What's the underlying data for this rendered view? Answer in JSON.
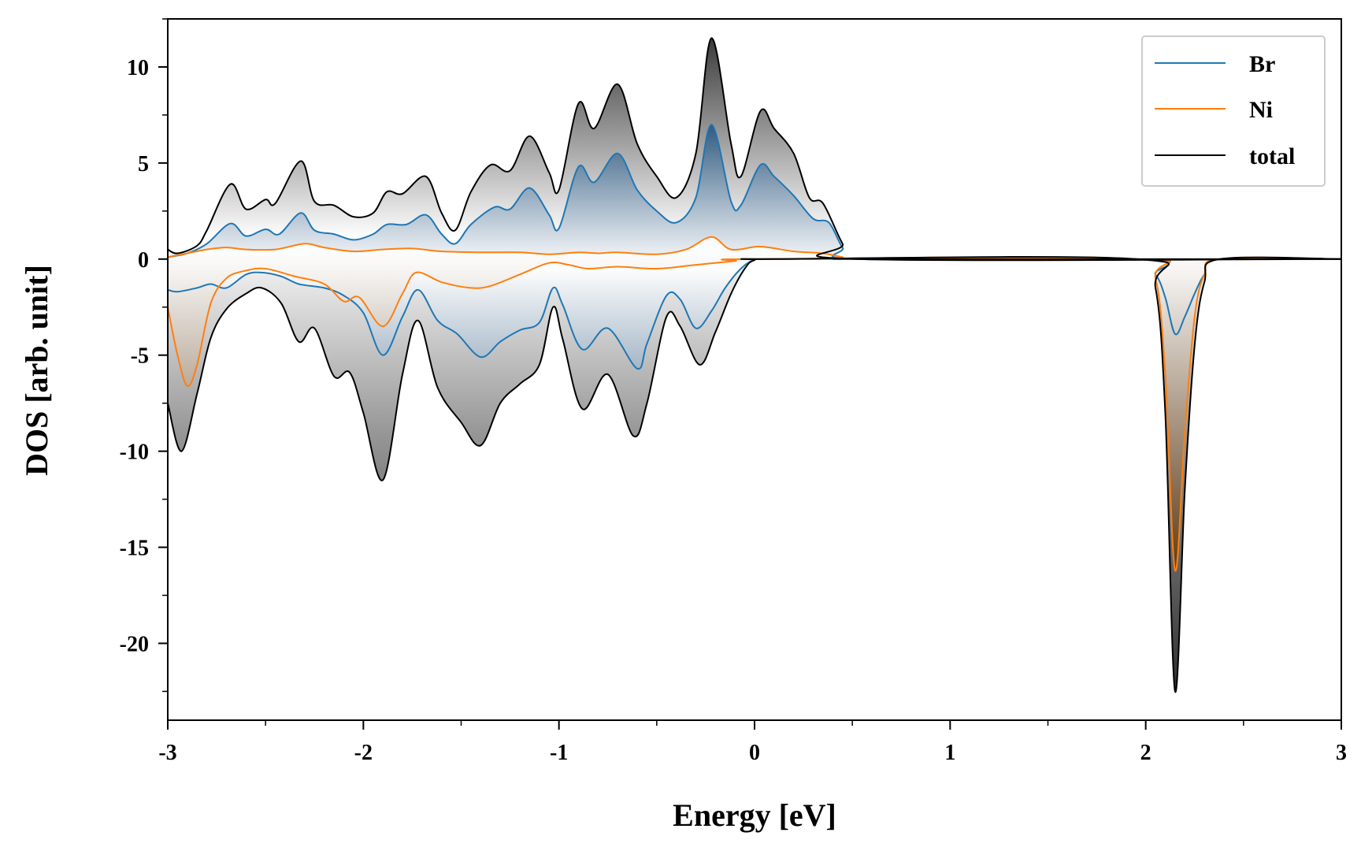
{
  "chart_data": {
    "type": "area",
    "title": "",
    "xlabel": "Energy [eV]",
    "ylabel": "DOS [arb. unit]",
    "xlim": [
      -3,
      3
    ],
    "ylim": [
      -24,
      12.5
    ],
    "xticks": [
      -3,
      -2,
      -1,
      0,
      1,
      2,
      3
    ],
    "xtick_labels": [
      "-3",
      "-2",
      "-1",
      "0",
      "1",
      "2",
      "3"
    ],
    "yticks": [
      10,
      5,
      0,
      -5,
      -10,
      -15,
      -20
    ],
    "ytick_labels": [
      "10",
      "5",
      "0",
      "-5",
      "-10",
      "-15",
      "-20"
    ],
    "grid": false,
    "legend_position": "top-right",
    "colors": {
      "Br": "#1f77b4",
      "Ni": "#ff7f0e",
      "total": "#000000"
    },
    "series": [
      {
        "name": "Br",
        "up": [
          [
            -3.0,
            0.1
          ],
          [
            -2.9,
            0.3
          ],
          [
            -2.8,
            0.8
          ],
          [
            -2.68,
            1.85
          ],
          [
            -2.6,
            1.2
          ],
          [
            -2.5,
            1.55
          ],
          [
            -2.43,
            1.3
          ],
          [
            -2.32,
            2.4
          ],
          [
            -2.25,
            1.5
          ],
          [
            -2.15,
            1.3
          ],
          [
            -2.05,
            1.0
          ],
          [
            -1.95,
            1.3
          ],
          [
            -1.88,
            1.8
          ],
          [
            -1.78,
            1.8
          ],
          [
            -1.68,
            2.3
          ],
          [
            -1.6,
            1.3
          ],
          [
            -1.53,
            0.8
          ],
          [
            -1.45,
            1.8
          ],
          [
            -1.33,
            2.7
          ],
          [
            -1.25,
            2.6
          ],
          [
            -1.15,
            3.7
          ],
          [
            -1.05,
            2.3
          ],
          [
            -1.0,
            1.6
          ],
          [
            -0.9,
            4.8
          ],
          [
            -0.82,
            4.0
          ],
          [
            -0.7,
            5.5
          ],
          [
            -0.6,
            3.6
          ],
          [
            -0.5,
            2.5
          ],
          [
            -0.4,
            1.9
          ],
          [
            -0.3,
            3.2
          ],
          [
            -0.22,
            7.0
          ],
          [
            -0.12,
            3.0
          ],
          [
            -0.07,
            2.8
          ],
          [
            0.03,
            4.9
          ],
          [
            0.1,
            4.3
          ],
          [
            0.2,
            3.3
          ],
          [
            0.3,
            2.1
          ],
          [
            0.38,
            1.9
          ],
          [
            0.45,
            0.6
          ],
          [
            0.52,
            0.0
          ],
          [
            1.9,
            0.0
          ],
          [
            3.0,
            0.0
          ]
        ],
        "down": [
          [
            -3.0,
            -1.6
          ],
          [
            -2.95,
            -1.7
          ],
          [
            -2.85,
            -1.5
          ],
          [
            -2.78,
            -1.3
          ],
          [
            -2.7,
            -1.5
          ],
          [
            -2.6,
            -0.8
          ],
          [
            -2.52,
            -0.7
          ],
          [
            -2.42,
            -0.9
          ],
          [
            -2.33,
            -1.3
          ],
          [
            -2.2,
            -1.5
          ],
          [
            -2.1,
            -1.9
          ],
          [
            -2.0,
            -2.8
          ],
          [
            -1.9,
            -5.0
          ],
          [
            -1.8,
            -3.0
          ],
          [
            -1.72,
            -1.6
          ],
          [
            -1.62,
            -3.2
          ],
          [
            -1.52,
            -3.9
          ],
          [
            -1.4,
            -5.1
          ],
          [
            -1.3,
            -4.3
          ],
          [
            -1.2,
            -3.7
          ],
          [
            -1.1,
            -3.3
          ],
          [
            -1.03,
            -1.5
          ],
          [
            -0.98,
            -2.4
          ],
          [
            -0.88,
            -4.7
          ],
          [
            -0.75,
            -3.6
          ],
          [
            -0.6,
            -5.7
          ],
          [
            -0.55,
            -4.4
          ],
          [
            -0.45,
            -1.9
          ],
          [
            -0.38,
            -2.1
          ],
          [
            -0.3,
            -3.6
          ],
          [
            -0.22,
            -2.7
          ],
          [
            -0.15,
            -1.5
          ],
          [
            -0.07,
            -0.5
          ],
          [
            0.0,
            -0.05
          ],
          [
            0.1,
            0.0
          ],
          [
            1.95,
            0.0
          ],
          [
            2.05,
            -0.8
          ],
          [
            2.1,
            -2.0
          ],
          [
            2.15,
            -3.9
          ],
          [
            2.2,
            -3.0
          ],
          [
            2.25,
            -1.8
          ],
          [
            2.3,
            -0.8
          ],
          [
            2.38,
            0.0
          ],
          [
            3.0,
            0.0
          ]
        ]
      },
      {
        "name": "Ni",
        "up": [
          [
            -3.0,
            0.1
          ],
          [
            -2.9,
            0.3
          ],
          [
            -2.8,
            0.5
          ],
          [
            -2.7,
            0.6
          ],
          [
            -2.6,
            0.5
          ],
          [
            -2.45,
            0.5
          ],
          [
            -2.3,
            0.8
          ],
          [
            -2.2,
            0.6
          ],
          [
            -2.05,
            0.4
          ],
          [
            -1.9,
            0.5
          ],
          [
            -1.75,
            0.55
          ],
          [
            -1.6,
            0.4
          ],
          [
            -1.4,
            0.35
          ],
          [
            -1.2,
            0.35
          ],
          [
            -1.05,
            0.25
          ],
          [
            -0.9,
            0.35
          ],
          [
            -0.8,
            0.3
          ],
          [
            -0.7,
            0.35
          ],
          [
            -0.5,
            0.25
          ],
          [
            -0.35,
            0.5
          ],
          [
            -0.22,
            1.15
          ],
          [
            -0.12,
            0.5
          ],
          [
            0.03,
            0.65
          ],
          [
            0.2,
            0.4
          ],
          [
            0.35,
            0.3
          ],
          [
            0.45,
            0.1
          ],
          [
            0.52,
            0.0
          ],
          [
            3.0,
            0.0
          ]
        ],
        "down": [
          [
            -3.0,
            -2.5
          ],
          [
            -2.95,
            -5.0
          ],
          [
            -2.9,
            -6.6
          ],
          [
            -2.85,
            -5.5
          ],
          [
            -2.78,
            -2.3
          ],
          [
            -2.7,
            -1.0
          ],
          [
            -2.6,
            -0.6
          ],
          [
            -2.5,
            -0.5
          ],
          [
            -2.35,
            -0.9
          ],
          [
            -2.2,
            -1.3
          ],
          [
            -2.1,
            -2.2
          ],
          [
            -2.02,
            -2.0
          ],
          [
            -1.9,
            -3.5
          ],
          [
            -1.8,
            -1.8
          ],
          [
            -1.73,
            -0.7
          ],
          [
            -1.6,
            -1.2
          ],
          [
            -1.45,
            -1.5
          ],
          [
            -1.35,
            -1.4
          ],
          [
            -1.2,
            -0.8
          ],
          [
            -1.05,
            -0.2
          ],
          [
            -0.95,
            -0.3
          ],
          [
            -0.85,
            -0.5
          ],
          [
            -0.7,
            -0.4
          ],
          [
            -0.5,
            -0.5
          ],
          [
            -0.3,
            -0.3
          ],
          [
            -0.1,
            -0.1
          ],
          [
            0.0,
            0.0
          ],
          [
            1.95,
            0.0
          ],
          [
            2.05,
            -1.0
          ],
          [
            2.1,
            -6.0
          ],
          [
            2.15,
            -16.2
          ],
          [
            2.2,
            -9.0
          ],
          [
            2.25,
            -3.0
          ],
          [
            2.3,
            -0.8
          ],
          [
            2.38,
            0.0
          ],
          [
            3.0,
            0.0
          ]
        ]
      },
      {
        "name": "total",
        "up": [
          [
            -3.0,
            0.5
          ],
          [
            -2.95,
            0.3
          ],
          [
            -2.85,
            0.7
          ],
          [
            -2.8,
            1.5
          ],
          [
            -2.68,
            3.9
          ],
          [
            -2.6,
            2.6
          ],
          [
            -2.5,
            3.1
          ],
          [
            -2.45,
            2.9
          ],
          [
            -2.32,
            5.1
          ],
          [
            -2.25,
            3.0
          ],
          [
            -2.15,
            2.8
          ],
          [
            -2.05,
            2.2
          ],
          [
            -1.95,
            2.4
          ],
          [
            -1.88,
            3.5
          ],
          [
            -1.8,
            3.4
          ],
          [
            -1.68,
            4.3
          ],
          [
            -1.6,
            2.4
          ],
          [
            -1.53,
            1.5
          ],
          [
            -1.45,
            3.5
          ],
          [
            -1.35,
            4.9
          ],
          [
            -1.25,
            4.6
          ],
          [
            -1.15,
            6.4
          ],
          [
            -1.05,
            4.5
          ],
          [
            -1.0,
            3.6
          ],
          [
            -0.9,
            8.1
          ],
          [
            -0.82,
            6.8
          ],
          [
            -0.7,
            9.1
          ],
          [
            -0.6,
            6.0
          ],
          [
            -0.5,
            4.3
          ],
          [
            -0.4,
            3.2
          ],
          [
            -0.3,
            5.5
          ],
          [
            -0.22,
            11.5
          ],
          [
            -0.12,
            6.0
          ],
          [
            -0.07,
            4.3
          ],
          [
            0.03,
            7.7
          ],
          [
            0.1,
            6.8
          ],
          [
            0.2,
            5.5
          ],
          [
            0.28,
            3.2
          ],
          [
            0.35,
            2.9
          ],
          [
            0.45,
            0.8
          ],
          [
            0.52,
            0.0
          ],
          [
            3.0,
            0.0
          ]
        ],
        "down": [
          [
            -3.0,
            -7.5
          ],
          [
            -2.93,
            -10.0
          ],
          [
            -2.85,
            -7.0
          ],
          [
            -2.78,
            -4.1
          ],
          [
            -2.7,
            -2.6
          ],
          [
            -2.6,
            -1.8
          ],
          [
            -2.52,
            -1.5
          ],
          [
            -2.42,
            -2.3
          ],
          [
            -2.33,
            -4.3
          ],
          [
            -2.25,
            -3.6
          ],
          [
            -2.15,
            -6.1
          ],
          [
            -2.07,
            -5.9
          ],
          [
            -2.0,
            -8.0
          ],
          [
            -1.9,
            -11.5
          ],
          [
            -1.8,
            -6.0
          ],
          [
            -1.72,
            -3.2
          ],
          [
            -1.62,
            -6.7
          ],
          [
            -1.5,
            -8.5
          ],
          [
            -1.4,
            -9.7
          ],
          [
            -1.3,
            -7.5
          ],
          [
            -1.2,
            -6.5
          ],
          [
            -1.1,
            -5.5
          ],
          [
            -1.03,
            -2.5
          ],
          [
            -0.98,
            -4.2
          ],
          [
            -0.88,
            -7.8
          ],
          [
            -0.75,
            -6.0
          ],
          [
            -0.62,
            -9.2
          ],
          [
            -0.55,
            -7.5
          ],
          [
            -0.45,
            -3.0
          ],
          [
            -0.38,
            -3.5
          ],
          [
            -0.28,
            -5.5
          ],
          [
            -0.2,
            -3.8
          ],
          [
            -0.12,
            -1.8
          ],
          [
            -0.05,
            -0.5
          ],
          [
            0.0,
            -0.05
          ],
          [
            0.1,
            0.0
          ],
          [
            1.95,
            0.0
          ],
          [
            2.05,
            -1.5
          ],
          [
            2.1,
            -8.0
          ],
          [
            2.15,
            -22.5
          ],
          [
            2.2,
            -12.0
          ],
          [
            2.25,
            -4.5
          ],
          [
            2.3,
            -1.2
          ],
          [
            2.38,
            0.0
          ],
          [
            3.0,
            0.0
          ]
        ]
      }
    ]
  }
}
